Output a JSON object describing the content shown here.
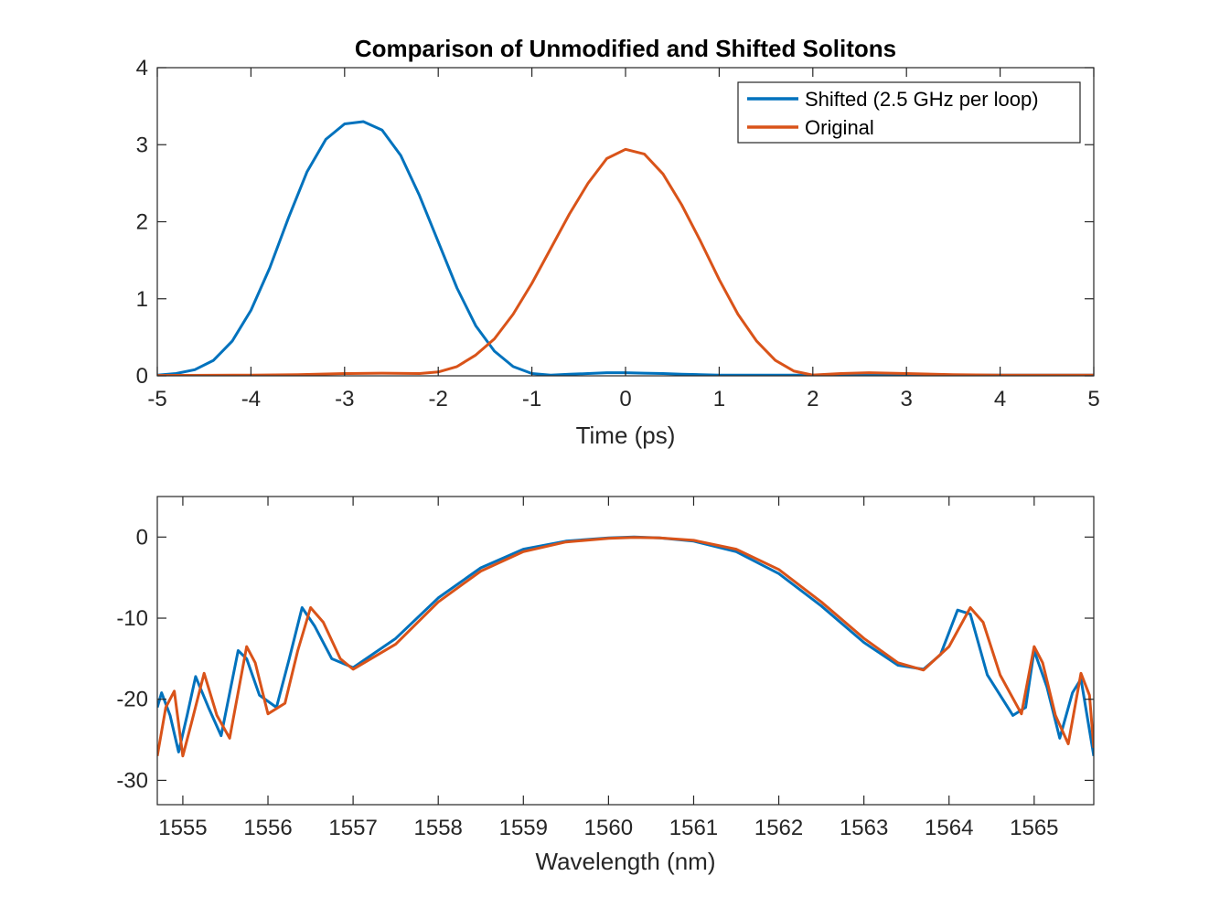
{
  "chart_data": [
    {
      "type": "line",
      "title": "Comparison of Unmodified and Shifted Solitons",
      "xlabel": "Time (ps)",
      "ylabel": "",
      "xlim": [
        -5,
        5
      ],
      "ylim": [
        0,
        4
      ],
      "xticks": [
        "-5",
        "-4",
        "-3",
        "-2",
        "-1",
        "0",
        "1",
        "2",
        "3",
        "4",
        "5"
      ],
      "yticks": [
        "0",
        "1",
        "2",
        "3",
        "4"
      ],
      "grid": false,
      "legend_position": "top-right",
      "series": [
        {
          "name": "Shifted (2.5 GHz per loop)",
          "color": "#0072BD",
          "x": [
            -5.0,
            -4.8,
            -4.6,
            -4.4,
            -4.2,
            -4.0,
            -3.8,
            -3.6,
            -3.4,
            -3.2,
            -3.0,
            -2.8,
            -2.6,
            -2.4,
            -2.2,
            -2.0,
            -1.8,
            -1.6,
            -1.4,
            -1.2,
            -1.0,
            -0.8,
            -0.6,
            -0.4,
            -0.2,
            0.0,
            0.2,
            0.4,
            0.6,
            0.8,
            1.0,
            1.5,
            2.0,
            2.5,
            3.0,
            3.5,
            4.0,
            4.5,
            5.0
          ],
          "y": [
            0.01,
            0.03,
            0.08,
            0.2,
            0.45,
            0.85,
            1.4,
            2.05,
            2.65,
            3.07,
            3.27,
            3.3,
            3.19,
            2.86,
            2.34,
            1.74,
            1.14,
            0.65,
            0.32,
            0.12,
            0.03,
            0.01,
            0.02,
            0.03,
            0.04,
            0.04,
            0.035,
            0.03,
            0.02,
            0.015,
            0.01,
            0.01,
            0.01,
            0.01,
            0.01,
            0.01,
            0.01,
            0.01,
            0.01
          ]
        },
        {
          "name": "Original",
          "color": "#D95319",
          "x": [
            -5.0,
            -4.0,
            -3.5,
            -3.0,
            -2.6,
            -2.2,
            -2.0,
            -1.8,
            -1.6,
            -1.4,
            -1.2,
            -1.0,
            -0.8,
            -0.6,
            -0.4,
            -0.2,
            0.0,
            0.2,
            0.4,
            0.6,
            0.8,
            1.0,
            1.2,
            1.4,
            1.6,
            1.8,
            2.0,
            2.3,
            2.6,
            3.0,
            3.5,
            4.0,
            4.5,
            5.0
          ],
          "y": [
            0.005,
            0.01,
            0.015,
            0.03,
            0.035,
            0.03,
            0.05,
            0.12,
            0.27,
            0.48,
            0.8,
            1.2,
            1.65,
            2.1,
            2.5,
            2.82,
            2.94,
            2.88,
            2.62,
            2.22,
            1.75,
            1.25,
            0.8,
            0.45,
            0.2,
            0.06,
            0.01,
            0.03,
            0.04,
            0.03,
            0.015,
            0.01,
            0.01,
            0.01
          ]
        }
      ]
    },
    {
      "type": "line",
      "title": "",
      "xlabel": "Wavelength (nm)",
      "ylabel": "",
      "xlim": [
        1554.7,
        1565.7
      ],
      "ylim": [
        -33,
        5
      ],
      "xticks": [
        "1555",
        "1556",
        "1557",
        "1558",
        "1559",
        "1560",
        "1561",
        "1562",
        "1563",
        "1564",
        "1565"
      ],
      "yticks": [
        "0",
        "-10",
        "-20",
        "-30"
      ],
      "grid": false,
      "series": [
        {
          "name": "",
          "color": "#0072BD",
          "x": [
            1554.7,
            1554.75,
            1554.85,
            1554.95,
            1555.05,
            1555.15,
            1555.3,
            1555.45,
            1555.65,
            1555.75,
            1555.9,
            1556.1,
            1556.25,
            1556.4,
            1556.55,
            1556.75,
            1557.0,
            1557.5,
            1558.0,
            1558.5,
            1559.0,
            1559.5,
            1560.0,
            1560.3,
            1560.6,
            1561.0,
            1561.5,
            1562.0,
            1562.5,
            1563.0,
            1563.4,
            1563.7,
            1563.9,
            1564.1,
            1564.25,
            1564.45,
            1564.75,
            1564.9,
            1565.0,
            1565.15,
            1565.3,
            1565.45,
            1565.55,
            1565.7
          ],
          "y": [
            -21,
            -19.2,
            -22,
            -26.5,
            -22,
            -17.2,
            -21,
            -24.5,
            -14,
            -15,
            -19.5,
            -21,
            -15,
            -8.7,
            -11,
            -15,
            -16.1,
            -12.5,
            -7.5,
            -3.8,
            -1.5,
            -0.5,
            -0.1,
            0,
            -0.1,
            -0.5,
            -1.8,
            -4.5,
            -8.5,
            -13,
            -15.8,
            -16.3,
            -14.5,
            -9,
            -9.5,
            -17,
            -22,
            -21,
            -14,
            -18.5,
            -24.8,
            -19.2,
            -17.5,
            -27
          ]
        },
        {
          "name": "",
          "color": "#D95319",
          "x": [
            1554.7,
            1554.8,
            1554.9,
            1555.0,
            1555.1,
            1555.25,
            1555.4,
            1555.55,
            1555.75,
            1555.85,
            1556.0,
            1556.2,
            1556.35,
            1556.5,
            1556.65,
            1556.85,
            1557.0,
            1557.5,
            1558.0,
            1558.5,
            1559.0,
            1559.5,
            1560.0,
            1560.3,
            1560.6,
            1561.0,
            1561.5,
            1562.0,
            1562.5,
            1563.0,
            1563.4,
            1563.7,
            1564.0,
            1564.25,
            1564.4,
            1564.6,
            1564.85,
            1565.0,
            1565.1,
            1565.25,
            1565.4,
            1565.55,
            1565.65,
            1565.7
          ],
          "y": [
            -27,
            -21,
            -19,
            -27,
            -23,
            -16.8,
            -22,
            -24.8,
            -13.5,
            -15.5,
            -21.8,
            -20.5,
            -14,
            -8.7,
            -10.5,
            -15,
            -16.3,
            -13.2,
            -8,
            -4.2,
            -1.8,
            -0.6,
            -0.15,
            -0.05,
            -0.1,
            -0.4,
            -1.5,
            -4,
            -8,
            -12.5,
            -15.5,
            -16.4,
            -13.5,
            -8.7,
            -10.5,
            -17,
            -21.8,
            -13.5,
            -15.5,
            -22,
            -25.5,
            -16.8,
            -19.5,
            -26
          ]
        }
      ]
    }
  ]
}
